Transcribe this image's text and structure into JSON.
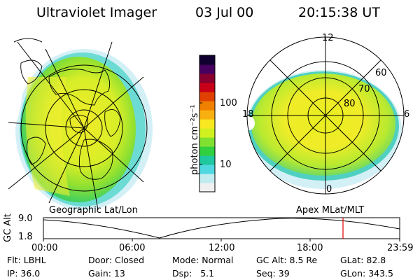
{
  "header": {
    "title": "Ultraviolet Imager",
    "date": "03 Jul 00",
    "time": "20:15:38 UT"
  },
  "left_panel": {
    "caption": "Geographic Lat/Lon"
  },
  "right_panel": {
    "caption": "Apex MLat/MLT",
    "mlt_labels": {
      "top": "12",
      "left": "18",
      "right": "6",
      "bottom": "0"
    },
    "lat_labels": [
      "60",
      "70",
      "80"
    ]
  },
  "colorbar": {
    "unit_label": "photon cm⁻²s⁻¹",
    "tick_labels": [
      "100",
      "10"
    ],
    "tick_values": [
      100,
      10
    ],
    "scale": "log",
    "colors": [
      "#f0f0f0",
      "#c0ecf0",
      "#50d8e0",
      "#20c8a0",
      "#30d040",
      "#80e030",
      "#d0f020",
      "#f8e820",
      "#f8b010",
      "#f08000",
      "#e04000",
      "#c80018",
      "#880030",
      "#480060",
      "#100030"
    ]
  },
  "gc_alt_plot": {
    "ylabel": "GC Alt",
    "y_ticks": [
      "9.0",
      "1.8"
    ],
    "ylim": [
      1.8,
      9.0
    ],
    "x_ticks": [
      "00:00",
      "06:00",
      "12:00",
      "18:00",
      "23:59"
    ],
    "current_time_marker": "20:15",
    "marker_color": "#e00000"
  },
  "info": {
    "row1": [
      {
        "label": "Flt:",
        "value": "LBHL"
      },
      {
        "label": "Door:",
        "value": "Closed"
      },
      {
        "label": "Mode:",
        "value": "Normal"
      },
      {
        "label": "GC Alt:",
        "value": "8.5 Re"
      },
      {
        "label": "GLat:",
        "value": "82.8"
      }
    ],
    "row2": [
      {
        "label": "IP:",
        "value": "36.0"
      },
      {
        "label": "Gain:",
        "value": "13"
      },
      {
        "label": "Dsp:",
        "value": "5.1"
      },
      {
        "label": "Seq:",
        "value": "39"
      },
      {
        "label": "GLon:",
        "value": "343.5"
      }
    ]
  }
}
